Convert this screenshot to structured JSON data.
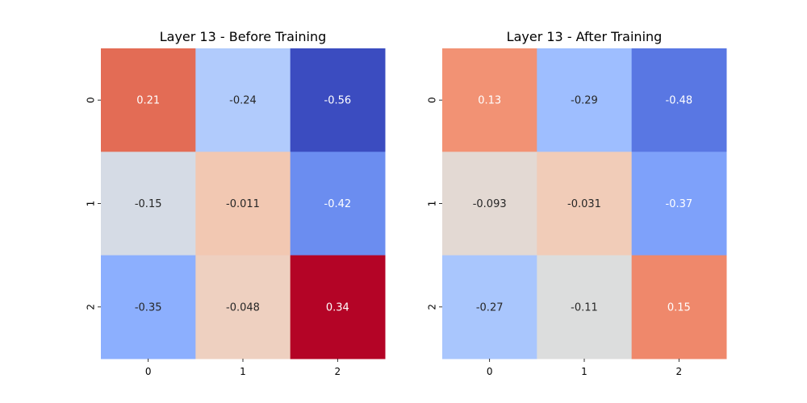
{
  "chart_data": [
    {
      "type": "heatmap",
      "title": "Layer 13 - Before Training",
      "x_ticks": [
        "0",
        "1",
        "2"
      ],
      "y_ticks": [
        "0",
        "1",
        "2"
      ],
      "colormap": "coolwarm",
      "values": [
        [
          0.21,
          -0.24,
          -0.56
        ],
        [
          -0.15,
          -0.011,
          -0.42
        ],
        [
          -0.35,
          -0.048,
          0.34
        ]
      ],
      "labels": [
        [
          "0.21",
          "-0.24",
          "-0.56"
        ],
        [
          "-0.15",
          "-0.011",
          "-0.42"
        ],
        [
          "-0.35",
          "-0.048",
          "0.34"
        ]
      ],
      "colors": [
        [
          "#e36c55",
          "#b1cbfc",
          "#3b4cc0"
        ],
        [
          "#d5dbe5",
          "#f2c8b2",
          "#6b8df0"
        ],
        [
          "#8caffe",
          "#eed0c0",
          "#b40426"
        ]
      ],
      "label_colors": [
        [
          "#ffffff",
          "#262626",
          "#ffffff"
        ],
        [
          "#262626",
          "#262626",
          "#ffffff"
        ],
        [
          "#262626",
          "#262626",
          "#ffffff"
        ]
      ]
    },
    {
      "type": "heatmap",
      "title": "Layer 13 - After Training",
      "x_ticks": [
        "0",
        "1",
        "2"
      ],
      "y_ticks": [
        "0",
        "1",
        "2"
      ],
      "colormap": "coolwarm",
      "values": [
        [
          0.13,
          -0.29,
          -0.48
        ],
        [
          -0.093,
          -0.031,
          -0.37
        ],
        [
          -0.27,
          -0.11,
          0.15
        ]
      ],
      "labels": [
        [
          "0.13",
          "-0.29",
          "-0.48"
        ],
        [
          "-0.093",
          "-0.031",
          "-0.37"
        ],
        [
          "-0.27",
          "-0.11",
          "0.15"
        ]
      ],
      "colors": [
        [
          "#f29274",
          "#9ebeff",
          "#5977e3"
        ],
        [
          "#e3d9d3",
          "#f1ccb8",
          "#7ea1fa"
        ],
        [
          "#a9c6fd",
          "#dcdddd",
          "#ef886b"
        ]
      ],
      "label_colors": [
        [
          "#ffffff",
          "#262626",
          "#ffffff"
        ],
        [
          "#262626",
          "#262626",
          "#ffffff"
        ],
        [
          "#262626",
          "#262626",
          "#ffffff"
        ]
      ]
    }
  ]
}
